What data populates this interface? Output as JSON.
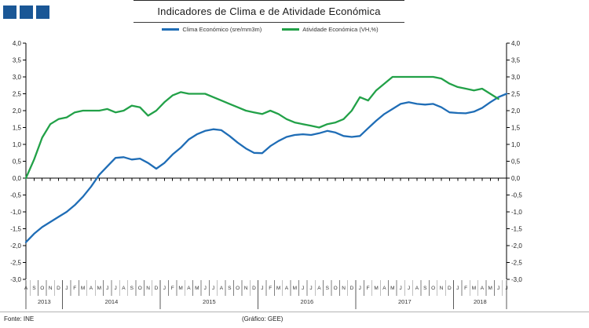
{
  "header": {
    "title": "Indicadores de Clima e de Atividade Económica",
    "logo": {
      "squares": 3,
      "color": "#1A5796"
    }
  },
  "footer": {
    "source_label": "Fonte: INE",
    "credit_label": "(Gráfico: GEE)"
  },
  "chart_data": {
    "type": "line",
    "title": "Indicadores de Clima e de Atividade Económica",
    "legend_position": "top",
    "grid": false,
    "ylim": [
      -3.0,
      4.0
    ],
    "ytick_step": 0.5,
    "ytick_labels": [
      "4,0",
      "3,5",
      "3,0",
      "2,5",
      "2,0",
      "1,5",
      "1,0",
      "0,5",
      "0,0",
      "-0,5",
      "-1,0",
      "-1,5",
      "-2,0",
      "-2,5",
      "-3,0"
    ],
    "dual_axis": true,
    "x_groups": [
      {
        "year": "2013",
        "months": [
          "A",
          "S",
          "O",
          "N",
          "D"
        ]
      },
      {
        "year": "2014",
        "months": [
          "J",
          "F",
          "M",
          "A",
          "M",
          "J",
          "J",
          "A",
          "S",
          "O",
          "N",
          "D"
        ]
      },
      {
        "year": "2015",
        "months": [
          "J",
          "F",
          "M",
          "A",
          "M",
          "J",
          "J",
          "A",
          "S",
          "O",
          "N",
          "D"
        ]
      },
      {
        "year": "2016",
        "months": [
          "J",
          "F",
          "M",
          "A",
          "M",
          "J",
          "J",
          "A",
          "S",
          "O",
          "N",
          "D"
        ]
      },
      {
        "year": "2017",
        "months": [
          "J",
          "F",
          "M",
          "A",
          "M",
          "J",
          "J",
          "A",
          "S",
          "O",
          "N",
          "D"
        ]
      },
      {
        "year": "2018",
        "months": [
          "J",
          "F",
          "M",
          "A",
          "M",
          "J",
          "J"
        ]
      }
    ],
    "series": [
      {
        "name": "Clima Económico (sre/mm3m)",
        "color": "#1F6DB6",
        "values": [
          -1.9,
          -1.65,
          -1.45,
          -1.3,
          -1.15,
          -1.0,
          -0.8,
          -0.55,
          -0.25,
          0.1,
          0.35,
          0.6,
          0.62,
          0.55,
          0.58,
          0.45,
          0.28,
          0.45,
          0.7,
          0.9,
          1.15,
          1.3,
          1.4,
          1.45,
          1.42,
          1.25,
          1.05,
          0.88,
          0.75,
          0.74,
          0.95,
          1.1,
          1.22,
          1.28,
          1.3,
          1.28,
          1.33,
          1.4,
          1.35,
          1.25,
          1.22,
          1.25,
          1.48,
          1.7,
          1.9,
          2.05,
          2.2,
          2.25,
          2.2,
          2.18,
          2.2,
          2.1,
          1.95,
          1.93,
          1.92,
          1.97,
          2.08,
          2.25,
          2.4,
          2.5
        ]
      },
      {
        "name": "Atividade Económica (VH,%)",
        "color": "#22A148",
        "values": [
          0.0,
          0.55,
          1.2,
          1.6,
          1.75,
          1.8,
          1.95,
          2.0,
          2.0,
          2.0,
          2.05,
          1.95,
          2.0,
          2.15,
          2.1,
          1.85,
          2.0,
          2.25,
          2.45,
          2.55,
          2.5,
          2.5,
          2.5,
          2.4,
          2.3,
          2.2,
          2.1,
          2.0,
          1.95,
          1.9,
          2.0,
          1.9,
          1.75,
          1.65,
          1.6,
          1.55,
          1.5,
          1.6,
          1.65,
          1.75,
          2.0,
          2.4,
          2.3,
          2.6,
          2.8,
          3.0,
          3.0,
          3.0,
          3.0,
          3.0,
          3.0,
          2.95,
          2.8,
          2.7,
          2.65,
          2.6,
          2.65,
          2.5,
          2.35,
          null
        ]
      }
    ]
  }
}
